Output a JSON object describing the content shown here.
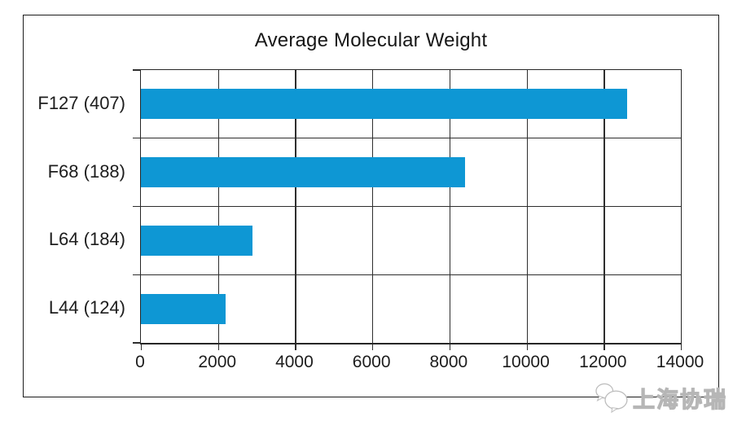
{
  "chart_data": {
    "type": "bar",
    "orientation": "horizontal",
    "title": "Average Molecular Weight",
    "categories": [
      "F127 (407)",
      "F68 (188)",
      "L64 (184)",
      "L44 (124)"
    ],
    "values": [
      12600,
      8400,
      2900,
      2200
    ],
    "xlabel": "",
    "ylabel": "",
    "xlim": [
      0,
      14000
    ],
    "x_ticks": [
      0,
      2000,
      4000,
      6000,
      8000,
      10000,
      12000,
      14000
    ],
    "x_tick_labels": [
      "0",
      "2000",
      "4000",
      "6000",
      "8000",
      "10000",
      "12000",
      "14000"
    ],
    "grid": "on",
    "legend": "none",
    "bar_color": "#0e97d4",
    "frame_color": "#1c1c1c"
  },
  "watermark": {
    "text": "上海协瑞",
    "logo": "chat-bubbles-icon",
    "color": "#b6b6b6"
  }
}
